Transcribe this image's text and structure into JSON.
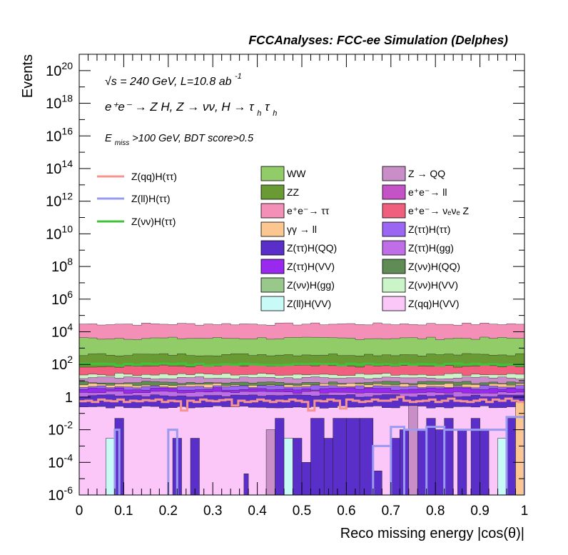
{
  "header": {
    "title": "FCCAnalyses: FCC-ee Simulation (Delphes)",
    "energy": "√s = 240 GeV, L=10.8 ab",
    "energy_exp": "-1",
    "process": "e⁺e⁻ → Z H, Z → νν, H → τ",
    "process_sub": "h",
    "process_tail": "τ",
    "process_sub2": "h",
    "cut": "E",
    "cut_sub": "miss",
    "cut_tail": ">100 GeV, BDT score>0.5"
  },
  "chart_data": {
    "type": "area",
    "stacked": true,
    "xlabel": "Reco missing energy |cos(θ)|",
    "ylabel": "Events",
    "xlim": [
      0,
      1
    ],
    "ylim": [
      1e-06,
      1e+21
    ],
    "log_y": true,
    "x_ticks": [
      "0",
      "0.1",
      "0.2",
      "0.3",
      "0.4",
      "0.5",
      "0.6",
      "0.7",
      "0.8",
      "0.9",
      "1"
    ],
    "y_ticks": [
      {
        "base": "10",
        "exp": "20",
        "value": 1e+20
      },
      {
        "base": "10",
        "exp": "18",
        "value": 1e+18
      },
      {
        "base": "10",
        "exp": "16",
        "value": 1e+16
      },
      {
        "base": "10",
        "exp": "14",
        "value": 100000000000000.0
      },
      {
        "base": "10",
        "exp": "12",
        "value": 1000000000000.0
      },
      {
        "base": "10",
        "exp": "10",
        "value": 10000000000.0
      },
      {
        "base": "10",
        "exp": "8",
        "value": 100000000.0
      },
      {
        "base": "10",
        "exp": "6",
        "value": 1000000.0
      },
      {
        "base": "10",
        "exp": "4",
        "value": 10000.0
      },
      {
        "base": "10",
        "exp": "2",
        "value": 100.0
      },
      {
        "base": "1",
        "exp": "",
        "value": 1
      },
      {
        "base": "10",
        "exp": "-2",
        "value": 0.01
      },
      {
        "base": "10",
        "exp": "-4",
        "value": 0.0001
      },
      {
        "base": "10",
        "exp": "-6",
        "value": 1e-06
      }
    ],
    "grid": false,
    "legend_position": "top",
    "stack_layers": [
      {
        "name": "e⁺e⁻→ ττ",
        "color": "#f48fb8",
        "cumulative_top": 30000
      },
      {
        "name": "WW",
        "color": "#91cc69",
        "cumulative_top": 4000
      },
      {
        "name": "ZZ",
        "color": "#6a9a33",
        "cumulative_top": 400
      },
      {
        "name": "e⁺e⁻→ νₑνₑ Z",
        "color": "#f0607e",
        "cumulative_top": 80
      },
      {
        "name": "Z(νν)H(VV)",
        "color": "#cbf5c8",
        "cumulative_top": 25
      },
      {
        "name": "Z → QQ",
        "color": "#c98ec7",
        "cumulative_top": 15
      },
      {
        "name": "Z(νν)H(QQ)",
        "color": "#5f8c55",
        "cumulative_top": 8
      },
      {
        "name": "γγ → ll",
        "color": "#fbc690",
        "cumulative_top": 6
      },
      {
        "name": "Z(ττ)H(ττ)",
        "color": "#9b66f2",
        "cumulative_top": 4.5
      },
      {
        "name": "Z(ττ)H(VV)",
        "color": "#9a29f0",
        "cumulative_top": 3.2
      },
      {
        "name": "Z(ττ)H(gg)",
        "color": "#c06ee8",
        "cumulative_top": 2.0
      },
      {
        "name": "Z(ττ)H(QQ)",
        "color": "#5a2ec8",
        "cumulative_top": 1.2
      },
      {
        "name": "Z(qq)H(VV)",
        "color": "#fbc6f8",
        "cumulative_top": 0.25
      }
    ],
    "legend_stack": [
      {
        "name": "WW",
        "color": "#91cc69"
      },
      {
        "name": "Z → QQ",
        "color": "#c98ec7"
      },
      {
        "name": "ZZ",
        "color": "#6a9a33"
      },
      {
        "name": "e⁺e⁻→ ll",
        "color": "#c553c8"
      },
      {
        "name": "e⁺e⁻→ ττ",
        "color": "#f48fb8"
      },
      {
        "name": "e⁺e⁻→ νₑνₑ Z",
        "color": "#f0607e"
      },
      {
        "name": "γγ → ll",
        "color": "#fbc690"
      },
      {
        "name": "Z(ττ)H(ττ)",
        "color": "#9b66f2"
      },
      {
        "name": "Z(ττ)H(QQ)",
        "color": "#5a2ec8"
      },
      {
        "name": "Z(ττ)H(gg)",
        "color": "#c06ee8"
      },
      {
        "name": "Z(ττ)H(VV)",
        "color": "#9a29f0"
      },
      {
        "name": "Z(νν)H(QQ)",
        "color": "#5f8c55"
      },
      {
        "name": "Z(νν)H(gg)",
        "color": "#98c98b"
      },
      {
        "name": "Z(νν)H(VV)",
        "color": "#cbf5c8"
      },
      {
        "name": "Z(ll)H(VV)",
        "color": "#c8fbf8"
      },
      {
        "name": "Z(qq)H(VV)",
        "color": "#fbc6f8"
      }
    ],
    "signal_series": [
      {
        "name": "Z(qq)H(ττ)",
        "color": "#f8948e",
        "values": [
          0.55,
          0.6,
          0.5,
          0.7,
          0.6,
          0.55,
          0.7,
          0.5,
          0.6,
          0.55,
          0.65,
          0.6,
          0.7,
          0.5,
          0.6,
          0.55,
          0.15,
          0.6,
          0.5,
          0.7,
          0.6,
          0.55,
          0.65,
          0.7,
          0.3,
          0.6,
          0.5,
          0.55,
          0.7,
          0.6,
          0.5,
          0.6,
          0.55,
          0.7,
          0.6,
          0.5,
          0.15,
          0.6,
          0.55,
          0.7,
          0.6,
          0.2,
          0.7,
          0.6,
          0.5,
          0.55,
          0.7,
          0.6,
          0.6,
          0.7,
          1.0,
          0.6,
          0.5,
          0.55,
          0.6,
          0.7,
          0.5,
          0.6,
          0.8,
          0.6,
          0.55,
          0.5,
          0.6,
          0.7,
          0.5,
          0.7,
          0.6,
          0.8,
          0.6,
          0.5
        ]
      },
      {
        "name": "Z(ll)H(ττ)",
        "color": "#9a9af0",
        "segments": [
          {
            "x0": 0.08,
            "x1": 0.09,
            "y": 0.01
          },
          {
            "x0": 0.2,
            "x1": 0.22,
            "y": 0.01
          },
          {
            "x0": 0.66,
            "x1": 0.7,
            "y": 0.001
          },
          {
            "x0": 0.7,
            "x1": 0.73,
            "y": 0.015
          },
          {
            "x0": 0.73,
            "x1": 0.78,
            "y": 0.01
          },
          {
            "x0": 0.78,
            "x1": 0.82,
            "y": 0.015
          },
          {
            "x0": 0.82,
            "x1": 0.96,
            "y": 0.01
          },
          {
            "x0": 0.96,
            "x1": 1.0,
            "y": 0.06
          }
        ]
      },
      {
        "name": "Z(νν)H(ττ)",
        "color": "#3fc33b",
        "value": 100
      }
    ],
    "low_bins": [
      {
        "x0": 0.06,
        "x1": 0.08,
        "y": 0.003,
        "color": "#c8fbf8"
      },
      {
        "x0": 0.08,
        "x1": 0.1,
        "y": 0.05,
        "color": "#5a2ec8"
      },
      {
        "x0": 0.21,
        "x1": 0.23,
        "y": 0.003,
        "color": "#5a2ec8"
      },
      {
        "x0": 0.25,
        "x1": 0.27,
        "y": 0.003,
        "color": "#5a2ec8"
      },
      {
        "x0": 0.37,
        "x1": 0.38,
        "y": 2e-05,
        "color": "#5a2ec8"
      },
      {
        "x0": 0.42,
        "x1": 0.44,
        "y": 0.01,
        "color": "#c98ec7"
      },
      {
        "x0": 0.44,
        "x1": 0.46,
        "y": 0.05,
        "color": "#5a2ec8"
      },
      {
        "x0": 0.46,
        "x1": 0.48,
        "y": 0.003,
        "color": "#c8fbf8"
      },
      {
        "x0": 0.48,
        "x1": 0.5,
        "y": 0.003,
        "color": "#5a2ec8"
      },
      {
        "x0": 0.5,
        "x1": 0.52,
        "y": 0.0001,
        "color": "#5a2ec8"
      },
      {
        "x0": 0.52,
        "x1": 0.55,
        "y": 0.05,
        "color": "#5a2ec8"
      },
      {
        "x0": 0.55,
        "x1": 0.57,
        "y": 0.003,
        "color": "#5a2ec8"
      },
      {
        "x0": 0.57,
        "x1": 0.6,
        "y": 0.05,
        "color": "#5a2ec8"
      },
      {
        "x0": 0.6,
        "x1": 0.63,
        "y": 0.05,
        "color": "#5a2ec8"
      },
      {
        "x0": 0.63,
        "x1": 0.66,
        "y": 0.05,
        "color": "#5a2ec8"
      },
      {
        "x0": 0.66,
        "x1": 0.68,
        "y": 3e-05,
        "color": "#5a2ec8"
      },
      {
        "x0": 0.7,
        "x1": 0.72,
        "y": 0.003,
        "color": "#5a2ec8"
      },
      {
        "x0": 0.72,
        "x1": 0.74,
        "y": 0.01,
        "color": "#5a2ec8"
      },
      {
        "x0": 0.74,
        "x1": 0.76,
        "y": 0.3,
        "color": "#c98ec7"
      },
      {
        "x0": 0.76,
        "x1": 0.78,
        "y": 0.01,
        "color": "#5a2ec8"
      },
      {
        "x0": 0.78,
        "x1": 0.8,
        "y": 0.05,
        "color": "#5a2ec8"
      },
      {
        "x0": 0.8,
        "x1": 0.82,
        "y": 0.01,
        "color": "#5a2ec8"
      },
      {
        "x0": 0.82,
        "x1": 0.84,
        "y": 0.05,
        "color": "#5a2ec8"
      },
      {
        "x0": 0.85,
        "x1": 0.87,
        "y": 0.01,
        "color": "#5a2ec8"
      },
      {
        "x0": 0.88,
        "x1": 0.9,
        "y": 0.05,
        "color": "#5a2ec8"
      },
      {
        "x0": 0.9,
        "x1": 0.92,
        "y": 0.01,
        "color": "#5a2ec8"
      },
      {
        "x0": 0.94,
        "x1": 0.96,
        "y": 0.003,
        "color": "#c8fbf8"
      },
      {
        "x0": 0.96,
        "x1": 0.98,
        "y": 0.05,
        "color": "#5a2ec8"
      },
      {
        "x0": 0.98,
        "x1": 1.0,
        "y": 0.5,
        "color": "#fbc690"
      }
    ]
  }
}
